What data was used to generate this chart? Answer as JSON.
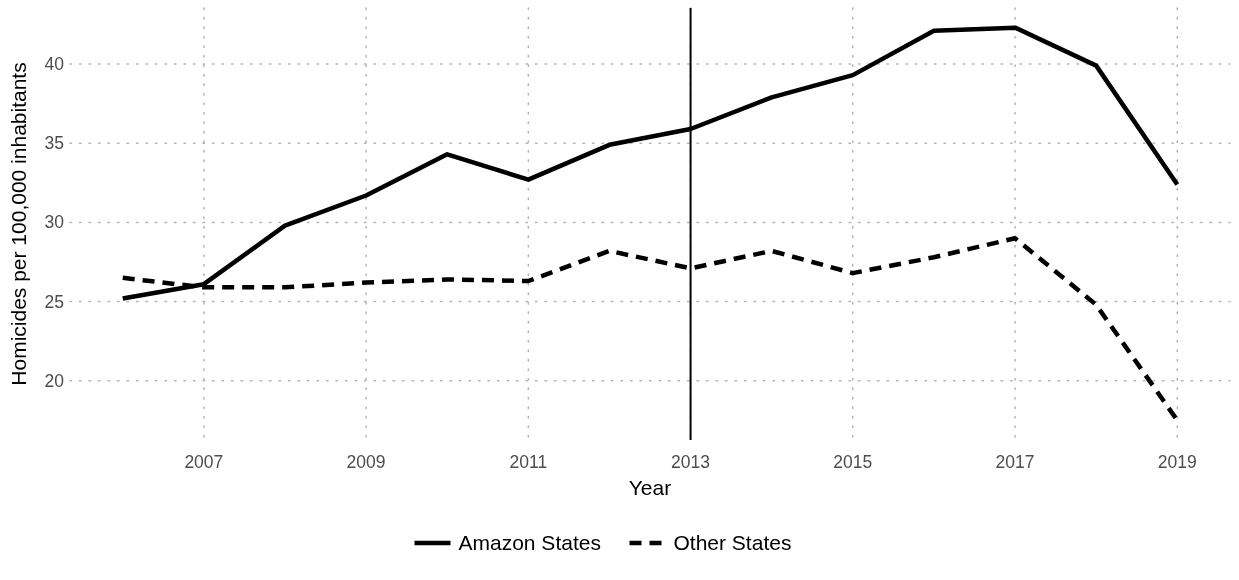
{
  "chart_data": {
    "type": "line",
    "xlabel": "Year",
    "ylabel": "Homicides per 100,000 inhabitants",
    "x": [
      2006,
      2007,
      2008,
      2009,
      2010,
      2011,
      2012,
      2013,
      2014,
      2015,
      2016,
      2017,
      2018,
      2019
    ],
    "series": [
      {
        "name": "Amazon States",
        "color": "#000000",
        "line_style": "solid",
        "values": [
          25.2,
          26.1,
          29.8,
          31.7,
          34.3,
          32.7,
          34.9,
          35.9,
          37.9,
          39.3,
          42.1,
          42.3,
          39.9,
          32.4
        ]
      },
      {
        "name": "Other States",
        "color": "#000000",
        "line_style": "dashed",
        "values": [
          26.5,
          25.9,
          25.9,
          26.2,
          26.4,
          26.3,
          28.2,
          27.1,
          28.2,
          26.8,
          27.8,
          29.0,
          24.8,
          17.5
        ]
      }
    ],
    "xlim": [
      2005.35,
      2019.65
    ],
    "xticks": [
      2007,
      2009,
      2011,
      2013,
      2015,
      2017,
      2019
    ],
    "ylim": [
      16.26,
      43.54
    ],
    "yticks": [
      20,
      25,
      30,
      35,
      40
    ],
    "ref_lines": [
      {
        "axis": "x",
        "value": 2013,
        "color": "#000000"
      }
    ],
    "grid": true,
    "legend": "bottom"
  }
}
